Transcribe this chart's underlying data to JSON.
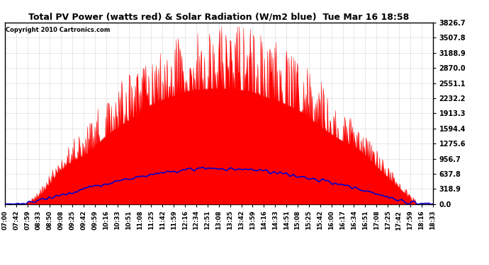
{
  "title": "Total PV Power (watts red) & Solar Radiation (W/m2 blue)  Tue Mar 16 18:58",
  "copyright": "Copyright 2010 Cartronics.com",
  "background_color": "#ffffff",
  "plot_bg_color": "#ffffff",
  "grid_color": "#888888",
  "red_color": "#ff0000",
  "blue_color": "#0000cc",
  "y_max": 3826.7,
  "y_min": 0.0,
  "y_ticks": [
    0.0,
    318.9,
    637.8,
    956.7,
    1275.6,
    1594.4,
    1913.3,
    2232.2,
    2551.1,
    2870.0,
    3188.9,
    3507.8,
    3826.7
  ],
  "x_labels": [
    "07:00",
    "07:42",
    "07:59",
    "08:33",
    "08:50",
    "09:08",
    "09:25",
    "09:42",
    "09:59",
    "10:16",
    "10:33",
    "10:51",
    "11:08",
    "11:25",
    "11:42",
    "11:59",
    "12:16",
    "12:34",
    "12:51",
    "13:08",
    "13:25",
    "13:42",
    "13:59",
    "14:16",
    "14:33",
    "14:51",
    "15:08",
    "15:25",
    "15:42",
    "16:00",
    "16:17",
    "16:34",
    "16:51",
    "17:08",
    "17:25",
    "17:42",
    "17:59",
    "18:16",
    "18:33"
  ]
}
